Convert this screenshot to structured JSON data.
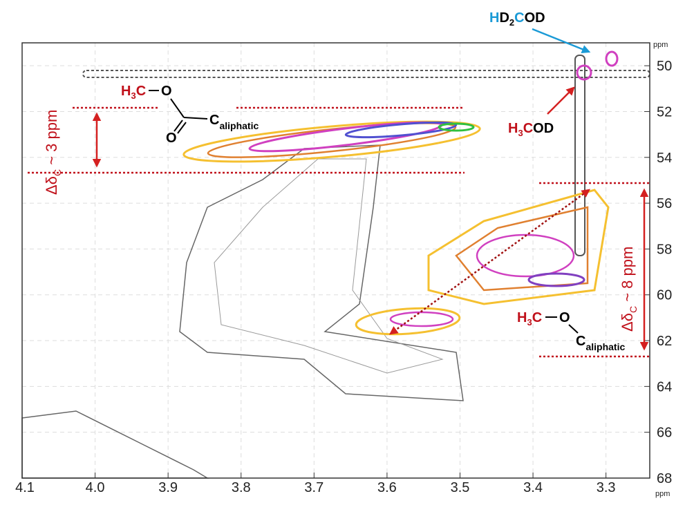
{
  "chart_data": {
    "type": "contour",
    "xlim": [
      4.1,
      3.24
    ],
    "ylim": [
      49,
      68
    ],
    "xticks": [
      4.1,
      {
        "value": 4,
        "label": "4.0"
      },
      3.9,
      3.8,
      3.7,
      3.6,
      3.5,
      3.4,
      3.3
    ],
    "yticks": [
      50,
      52,
      54,
      56,
      58,
      60,
      62,
      64,
      66,
      68
    ],
    "x_unit": "ppm",
    "y_unit": "ppm",
    "grid": true,
    "ester_label": {
      "h": "H",
      "sub3": "3",
      "c": "C",
      "o": "O",
      "carbonyl_o": "O",
      "c_aliphatic": "C",
      "aliphatic": "aliphatic"
    },
    "ester_shift_range": {
      "delta": "Δδ",
      "sub": "C",
      "text": " ~ 3 ppm"
    },
    "hd2cod": {
      "h": "H",
      "d": "D",
      "sub": "2",
      "c": "C",
      "od": "OD"
    },
    "h3cod": {
      "h": "H",
      "sub": "3",
      "c": "C",
      "od": "OD"
    },
    "ether_label": {
      "h": "H",
      "sub3": "3",
      "c": "C",
      "o": "O",
      "c_aliphatic": "C",
      "aliphatic": "aliphatic"
    },
    "ether_shift_range": {
      "delta": "Δδ",
      "sub": "C",
      "text": " ~ 8 ppm"
    }
  }
}
